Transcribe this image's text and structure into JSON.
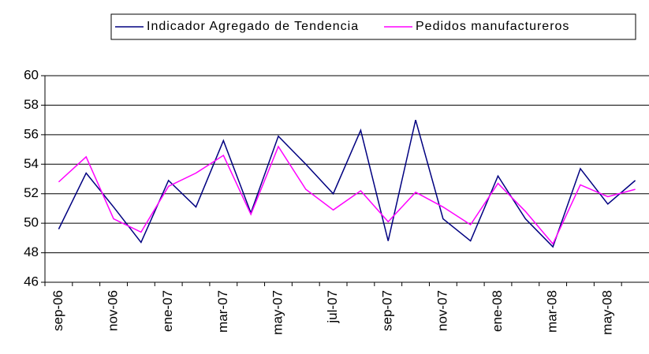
{
  "chart_data": {
    "type": "line",
    "categories": [
      "sep-06",
      null,
      "nov-06",
      null,
      "ene-07",
      null,
      "mar-07",
      null,
      "may-07",
      null,
      "jul-07",
      null,
      "sep-07",
      null,
      "nov-07",
      null,
      "ene-08",
      null,
      "mar-08",
      null,
      "may-08",
      null
    ],
    "series": [
      {
        "name": "Indicador Agregado de Tendencia",
        "color": "#000080",
        "values": [
          49.6,
          53.4,
          51.1,
          48.7,
          52.9,
          51.1,
          55.6,
          50.7,
          55.9,
          54.0,
          52.0,
          56.3,
          48.8,
          57.0,
          50.3,
          48.8,
          53.2,
          50.3,
          48.4,
          53.7,
          51.3,
          52.9
        ]
      },
      {
        "name": "Pedidos manufactureros",
        "color": "#ff00ff",
        "values": [
          52.8,
          54.5,
          50.3,
          49.4,
          52.5,
          53.4,
          54.6,
          50.6,
          55.2,
          52.3,
          50.9,
          52.2,
          50.1,
          52.1,
          51.1,
          49.9,
          52.7,
          50.8,
          48.6,
          52.6,
          51.8,
          52.3
        ]
      }
    ],
    "ylim": [
      46,
      60
    ],
    "yticks": [
      46,
      48,
      50,
      52,
      54,
      56,
      58,
      60
    ],
    "grid": true,
    "legend": "top"
  }
}
